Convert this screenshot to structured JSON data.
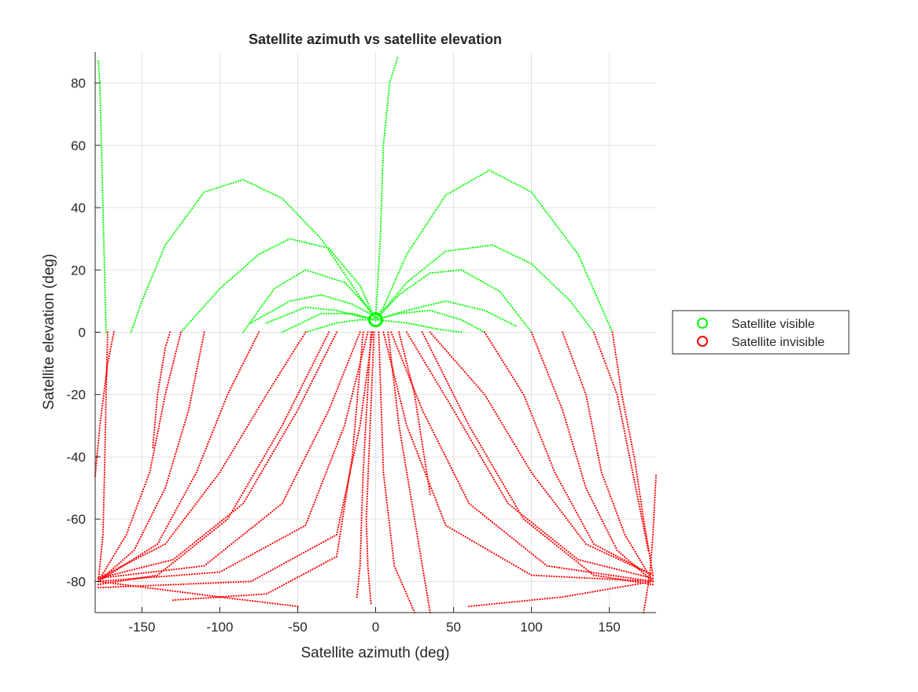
{
  "chart_data": {
    "type": "scatter",
    "title": "Satellite azimuth vs satellite elevation",
    "xlabel": "Satellite azimuth (deg)",
    "ylabel": "Satellite elevation (deg)",
    "xlim": [
      -180,
      180
    ],
    "ylim": [
      -90,
      90
    ],
    "xticks": [
      -150,
      -100,
      -50,
      0,
      50,
      100,
      150
    ],
    "yticks": [
      -80,
      -60,
      -40,
      -20,
      0,
      20,
      40,
      60,
      80
    ],
    "xtick_labels": [
      "-150",
      "-100",
      "-50",
      "0",
      "50",
      "100",
      "150"
    ],
    "ytick_labels": [
      "-80",
      "-60",
      "-40",
      "-20",
      "0",
      "20",
      "40",
      "60",
      "80"
    ],
    "grid": true,
    "legend": {
      "placement": "outside-right"
    },
    "colors": {
      "visible": "#00ff00",
      "invisible": "#ff0000"
    },
    "series": [
      {
        "name": "Satellite visible",
        "color": "#00ff00",
        "tracks": [
          [
            [
              152,
              0
            ],
            [
              130,
              25
            ],
            [
              100,
              45
            ],
            [
              73,
              52
            ],
            [
              45,
              44
            ],
            [
              20,
              25
            ],
            [
              5,
              8
            ],
            [
              0,
              4
            ]
          ],
          [
            [
              0,
              4
            ],
            [
              -15,
              15
            ],
            [
              -35,
              30
            ],
            [
              -60,
              43
            ],
            [
              -85,
              49
            ],
            [
              -110,
              45
            ],
            [
              -135,
              28
            ],
            [
              -150,
              10
            ],
            [
              -157,
              0
            ]
          ],
          [
            [
              -125,
              0
            ],
            [
              -100,
              14
            ],
            [
              -75,
              25
            ],
            [
              -55,
              30
            ],
            [
              -30,
              27
            ],
            [
              -10,
              15
            ],
            [
              0,
              4
            ]
          ],
          [
            [
              0,
              4
            ],
            [
              20,
              16
            ],
            [
              45,
              26
            ],
            [
              75,
              28
            ],
            [
              100,
              22
            ],
            [
              125,
              10
            ],
            [
              140,
              0
            ]
          ],
          [
            [
              -85,
              0
            ],
            [
              -65,
              14
            ],
            [
              -45,
              20
            ],
            [
              -20,
              16
            ],
            [
              -5,
              8
            ],
            [
              0,
              4
            ]
          ],
          [
            [
              0,
              4
            ],
            [
              15,
              12
            ],
            [
              35,
              19
            ],
            [
              55,
              20
            ],
            [
              80,
              13
            ],
            [
              100,
              0
            ]
          ],
          [
            [
              -80,
              3
            ],
            [
              -55,
              10
            ],
            [
              -35,
              12
            ],
            [
              -15,
              9
            ],
            [
              0,
              5
            ]
          ],
          [
            [
              -70,
              3
            ],
            [
              -45,
              8
            ],
            [
              -25,
              7
            ],
            [
              -10,
              5
            ],
            [
              0,
              4
            ]
          ],
          [
            [
              0,
              4
            ],
            [
              20,
              7
            ],
            [
              45,
              10
            ],
            [
              70,
              7
            ],
            [
              90,
              2
            ]
          ],
          [
            [
              0,
              4
            ],
            [
              15,
              6
            ],
            [
              35,
              7
            ],
            [
              55,
              4
            ],
            [
              70,
              0
            ]
          ],
          [
            [
              -60,
              0
            ],
            [
              -35,
              6
            ],
            [
              -15,
              6
            ],
            [
              0,
              4
            ]
          ],
          [
            [
              0,
              4
            ],
            [
              20,
              3
            ],
            [
              40,
              1
            ],
            [
              55,
              0
            ]
          ],
          [
            [
              -45,
              0
            ],
            [
              -25,
              3
            ],
            [
              -10,
              4
            ],
            [
              0,
              4
            ]
          ],
          [
            [
              0,
              4
            ],
            [
              3,
              30
            ],
            [
              5,
              60
            ],
            [
              9,
              80
            ],
            [
              14,
              88
            ]
          ],
          [
            [
              -173,
              0
            ],
            [
              -174,
              20
            ],
            [
              -175,
              40
            ],
            [
              -176,
              60
            ],
            [
              -177,
              80
            ],
            [
              -178,
              87
            ]
          ]
        ]
      },
      {
        "name": "Satellite invisible",
        "color": "#ff0000",
        "tracks": [
          [
            [
              -180,
              -46
            ],
            [
              -177,
              -30
            ],
            [
              -172,
              -10
            ],
            [
              -168,
              0
            ]
          ],
          [
            [
              -172,
              0
            ],
            [
              -173,
              -20
            ],
            [
              -174,
              -45
            ],
            [
              -175,
              -65
            ],
            [
              -178,
              -80
            ]
          ],
          [
            [
              -143,
              -37
            ],
            [
              -140,
              -20
            ],
            [
              -135,
              -5
            ],
            [
              -132,
              0
            ]
          ],
          [
            [
              -125,
              0
            ],
            [
              -135,
              -20
            ],
            [
              -145,
              -45
            ],
            [
              -160,
              -65
            ],
            [
              -178,
              -80
            ]
          ],
          [
            [
              -110,
              0
            ],
            [
              -120,
              -25
            ],
            [
              -135,
              -50
            ],
            [
              -155,
              -70
            ],
            [
              -178,
              -80
            ]
          ],
          [
            [
              -75,
              0
            ],
            [
              -95,
              -20
            ],
            [
              -115,
              -45
            ],
            [
              -140,
              -68
            ],
            [
              -178,
              -80
            ]
          ],
          [
            [
              -45,
              0
            ],
            [
              -70,
              -20
            ],
            [
              -100,
              -45
            ],
            [
              -135,
              -68
            ],
            [
              -178,
              -79
            ]
          ],
          [
            [
              -25,
              0
            ],
            [
              -50,
              -25
            ],
            [
              -85,
              -55
            ],
            [
              -130,
              -73
            ],
            [
              -178,
              -79
            ]
          ],
          [
            [
              -10,
              0
            ],
            [
              -30,
              -25
            ],
            [
              -60,
              -55
            ],
            [
              -110,
              -75
            ],
            [
              -178,
              -79
            ]
          ],
          [
            [
              -5,
              0
            ],
            [
              -20,
              -30
            ],
            [
              -45,
              -62
            ],
            [
              -100,
              -77
            ],
            [
              -178,
              -80
            ]
          ],
          [
            [
              -2,
              0
            ],
            [
              -10,
              -30
            ],
            [
              -25,
              -65
            ],
            [
              -80,
              -80
            ],
            [
              -178,
              -82
            ]
          ],
          [
            [
              -8,
              0
            ],
            [
              -15,
              -40
            ],
            [
              -25,
              -72
            ],
            [
              -70,
              -84
            ],
            [
              -130,
              -86
            ]
          ],
          [
            [
              -3,
              0
            ],
            [
              -8,
              -45
            ],
            [
              -10,
              -75
            ],
            [
              -12,
              -85
            ]
          ],
          [
            [
              -1,
              0
            ],
            [
              -6,
              -60
            ],
            [
              -5,
              -75
            ],
            [
              -3,
              -87
            ]
          ],
          [
            [
              2,
              0
            ],
            [
              5,
              -45
            ],
            [
              12,
              -75
            ],
            [
              25,
              -90
            ]
          ],
          [
            [
              8,
              0
            ],
            [
              15,
              -30
            ],
            [
              25,
              -60
            ],
            [
              35,
              -90
            ]
          ],
          [
            [
              5,
              0
            ],
            [
              20,
              -30
            ],
            [
              45,
              -62
            ],
            [
              100,
              -78
            ],
            [
              178,
              -80
            ]
          ],
          [
            [
              10,
              0
            ],
            [
              30,
              -25
            ],
            [
              60,
              -55
            ],
            [
              110,
              -75
            ],
            [
              178,
              -80
            ]
          ],
          [
            [
              20,
              0
            ],
            [
              50,
              -25
            ],
            [
              85,
              -55
            ],
            [
              130,
              -73
            ],
            [
              178,
              -79
            ]
          ],
          [
            [
              35,
              0
            ],
            [
              70,
              -20
            ],
            [
              100,
              -45
            ],
            [
              135,
              -68
            ],
            [
              178,
              -78
            ]
          ],
          [
            [
              70,
              0
            ],
            [
              95,
              -20
            ],
            [
              115,
              -45
            ],
            [
              140,
              -68
            ],
            [
              178,
              -78
            ]
          ],
          [
            [
              100,
              0
            ],
            [
              120,
              -25
            ],
            [
              135,
              -50
            ],
            [
              155,
              -70
            ],
            [
              178,
              -80
            ]
          ],
          [
            [
              120,
              0
            ],
            [
              135,
              -20
            ],
            [
              145,
              -45
            ],
            [
              160,
              -65
            ],
            [
              178,
              -80
            ]
          ],
          [
            [
              140,
              0
            ],
            [
              155,
              -20
            ],
            [
              165,
              -45
            ],
            [
              175,
              -70
            ]
          ],
          [
            [
              152,
              0
            ],
            [
              158,
              -20
            ],
            [
              166,
              -40
            ],
            [
              172,
              -60
            ],
            [
              178,
              -78
            ]
          ],
          [
            [
              180,
              -46
            ],
            [
              178,
              -65
            ],
            [
              176,
              -78
            ],
            [
              172,
              -90
            ]
          ],
          [
            [
              15,
              0
            ],
            [
              25,
              -20
            ],
            [
              35,
              -52
            ]
          ],
          [
            [
              -178,
              -80
            ],
            [
              -100,
              -85
            ],
            [
              -50,
              -88
            ]
          ],
          [
            [
              178,
              -80
            ],
            [
              120,
              -85
            ],
            [
              60,
              -88
            ]
          ],
          [
            [
              -30,
              0
            ],
            [
              -60,
              -30
            ],
            [
              -95,
              -60
            ],
            [
              -140,
              -78
            ],
            [
              -178,
              -81
            ]
          ],
          [
            [
              30,
              0
            ],
            [
              60,
              -30
            ],
            [
              95,
              -60
            ],
            [
              140,
              -78
            ],
            [
              178,
              -81
            ]
          ]
        ]
      }
    ],
    "markers": [
      {
        "series": "Satellite visible",
        "x": 0,
        "y": 4,
        "shape": "circle"
      }
    ]
  }
}
